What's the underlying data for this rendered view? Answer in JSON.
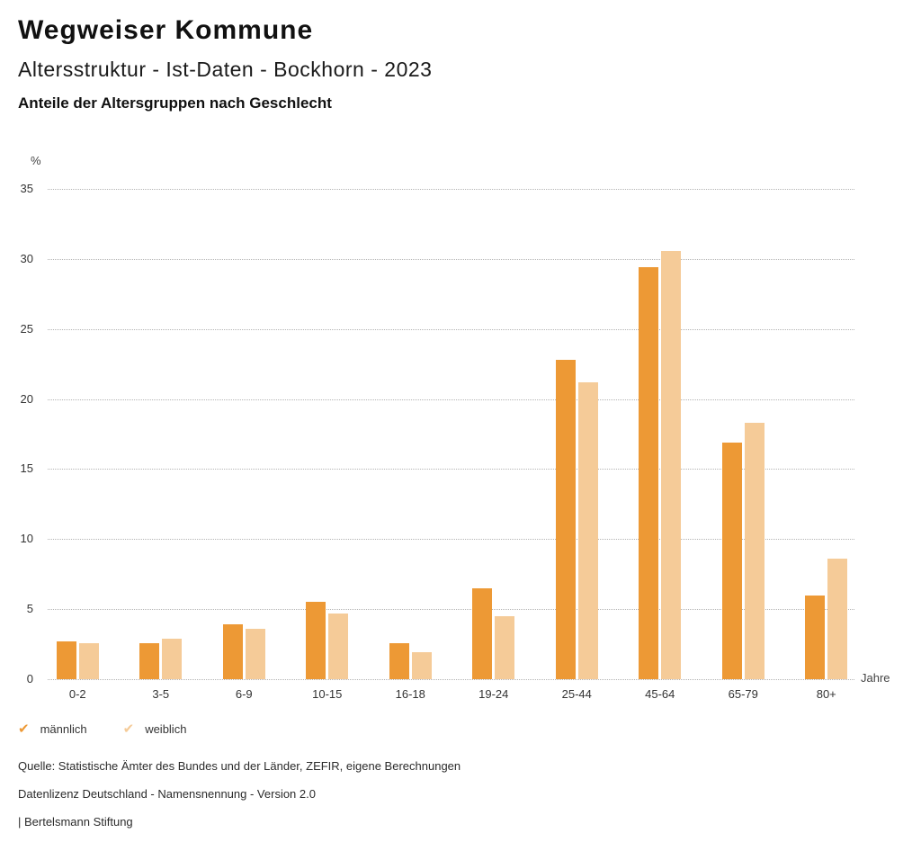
{
  "header": {
    "title": "Wegweiser Kommune",
    "subtitle": "Altersstruktur - Ist-Daten - Bockhorn - 2023",
    "caption": "Anteile der Altersgruppen nach Geschlecht"
  },
  "chart_data": {
    "type": "bar",
    "title": "Anteile der Altersgruppen nach Geschlecht",
    "ylabel": "%",
    "xlabel": "Jahre",
    "categories": [
      "0-2",
      "3-5",
      "6-9",
      "10-15",
      "16-18",
      "19-24",
      "25-44",
      "45-64",
      "65-79",
      "80+"
    ],
    "series": [
      {
        "name": "männlich",
        "color": "#ED9935",
        "values": [
          2.7,
          2.6,
          3.9,
          5.5,
          2.6,
          6.5,
          22.8,
          29.4,
          16.9,
          6.0
        ]
      },
      {
        "name": "weiblich",
        "color": "#F5CB98",
        "values": [
          2.6,
          2.9,
          3.6,
          4.7,
          1.9,
          4.5,
          21.2,
          30.6,
          18.3,
          8.6
        ]
      }
    ],
    "ylim": [
      0,
      35
    ],
    "ytick_step": 5,
    "yticks": [
      0,
      5,
      10,
      15,
      20,
      25,
      30,
      35
    ],
    "grid": "horizontal-dotted",
    "legend_position": "bottom-left"
  },
  "legend": {
    "check_icon": "✔"
  },
  "footer": {
    "source": "Quelle: Statistische Ämter des Bundes und der Länder, ZEFIR, eigene Berechnungen",
    "license": "Datenlizenz Deutschland - Namensnennung - Version 2.0",
    "attribution": "| Bertelsmann Stiftung"
  }
}
